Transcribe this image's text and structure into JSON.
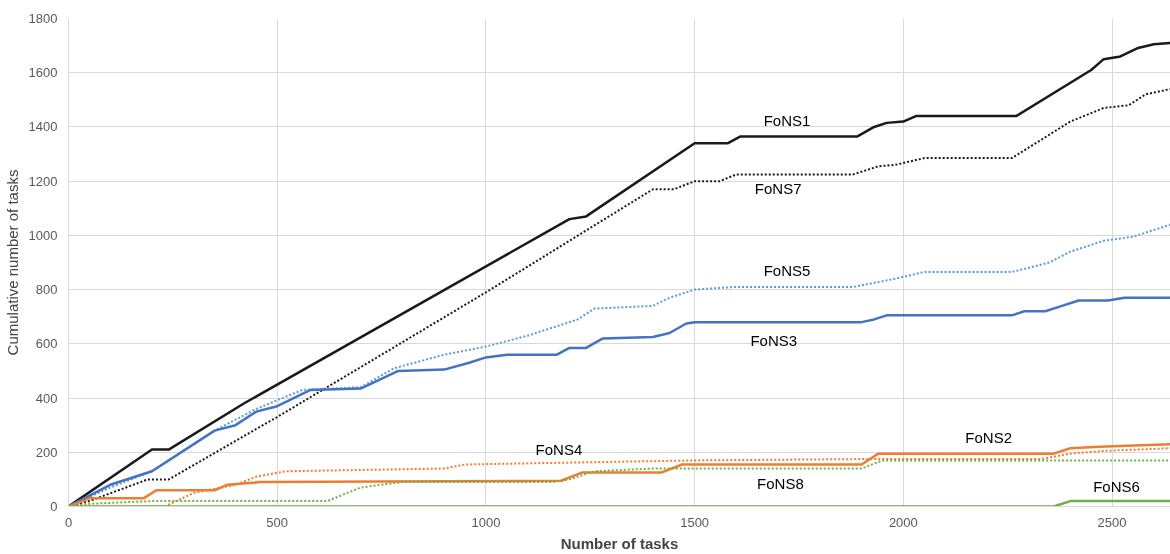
{
  "chart_data": {
    "type": "line",
    "xlabel": "Number of tasks",
    "ylabel": "Cumulative number of tasks",
    "xlim": [
      0,
      2640
    ],
    "ylim": [
      0,
      1800
    ],
    "xticks": [
      0,
      500,
      1000,
      1500,
      2000,
      2500
    ],
    "yticks": [
      0,
      200,
      400,
      600,
      800,
      1000,
      1200,
      1400,
      1600,
      1800
    ],
    "grid": true,
    "legend": false,
    "marker": "none",
    "series": [
      {
        "name": "FoNS1",
        "color": "#1a1a1a",
        "line_style": "solid",
        "x": [
          0,
          200,
          240,
          420,
          1200,
          1240,
          1500,
          1580,
          1610,
          1890,
          1930,
          1960,
          2000,
          2030,
          2270,
          2450,
          2480,
          2520,
          2560,
          2600,
          2640
        ],
        "values": [
          0,
          210,
          210,
          380,
          1060,
          1070,
          1340,
          1340,
          1365,
          1365,
          1400,
          1415,
          1420,
          1440,
          1440,
          1610,
          1650,
          1660,
          1690,
          1705,
          1710
        ]
      },
      {
        "name": "FoNS7",
        "color": "#1a1a1a",
        "line_style": "dotted",
        "x": [
          0,
          50,
          190,
          240,
          500,
          1000,
          1400,
          1450,
          1500,
          1560,
          1600,
          1880,
          1940,
          1980,
          2050,
          2260,
          2400,
          2480,
          2540,
          2580,
          2640
        ],
        "values": [
          0,
          20,
          100,
          100,
          330,
          790,
          1170,
          1170,
          1200,
          1200,
          1225,
          1225,
          1255,
          1260,
          1285,
          1285,
          1420,
          1470,
          1480,
          1520,
          1540
        ]
      },
      {
        "name": "FoNS5",
        "color": "#5b9bd5",
        "line_style": "dotted",
        "x": [
          0,
          100,
          200,
          350,
          450,
          560,
          700,
          780,
          900,
          1000,
          1100,
          1220,
          1260,
          1400,
          1440,
          1500,
          1600,
          1880,
          1980,
          2050,
          2260,
          2350,
          2400,
          2480,
          2550,
          2600,
          2640
        ],
        "values": [
          0,
          70,
          130,
          280,
          360,
          430,
          440,
          510,
          560,
          590,
          630,
          690,
          730,
          740,
          770,
          800,
          810,
          810,
          840,
          865,
          865,
          900,
          940,
          980,
          995,
          1020,
          1040
        ]
      },
      {
        "name": "FoNS3",
        "color": "#4472c4",
        "line_style": "solid",
        "x": [
          0,
          100,
          200,
          350,
          400,
          450,
          500,
          580,
          700,
          790,
          900,
          960,
          1000,
          1050,
          1170,
          1200,
          1240,
          1280,
          1400,
          1440,
          1480,
          1500,
          1900,
          1930,
          1960,
          2260,
          2290,
          2340,
          2380,
          2420,
          2490,
          2530,
          2640
        ],
        "values": [
          0,
          80,
          130,
          280,
          300,
          350,
          370,
          430,
          435,
          500,
          505,
          530,
          550,
          560,
          560,
          585,
          585,
          620,
          625,
          640,
          675,
          680,
          680,
          690,
          705,
          705,
          720,
          720,
          740,
          760,
          760,
          770,
          770
        ]
      },
      {
        "name": "FoNS2",
        "color": "#ed7d31",
        "line_style": "solid",
        "x": [
          0,
          50,
          180,
          210,
          350,
          380,
          460,
          1180,
          1230,
          1420,
          1470,
          1900,
          1940,
          2360,
          2400,
          2470,
          2640
        ],
        "values": [
          0,
          30,
          30,
          60,
          60,
          80,
          90,
          95,
          125,
          125,
          155,
          155,
          195,
          195,
          215,
          220,
          230
        ]
      },
      {
        "name": "FoNS4",
        "color": "#ed7d31",
        "line_style": "dotted",
        "x": [
          0,
          230,
          300,
          400,
          450,
          520,
          900,
          950,
          1500,
          1900,
          2330,
          2400,
          2480,
          2640
        ],
        "values": [
          0,
          0,
          50,
          80,
          110,
          130,
          140,
          155,
          170,
          175,
          175,
          195,
          205,
          215
        ]
      },
      {
        "name": "FoNS8",
        "color": "#70ad47",
        "line_style": "dotted",
        "x": [
          0,
          50,
          200,
          620,
          700,
          800,
          1160,
          1200,
          1260,
          1400,
          1900,
          1950,
          2640
        ],
        "values": [
          0,
          10,
          20,
          20,
          70,
          90,
          90,
          100,
          130,
          140,
          140,
          170,
          170
        ]
      },
      {
        "name": "FoNS6",
        "color": "#70ad47",
        "line_style": "solid",
        "x": [
          0,
          2360,
          2400,
          2640
        ],
        "values": [
          0,
          0,
          20,
          20
        ]
      }
    ]
  }
}
